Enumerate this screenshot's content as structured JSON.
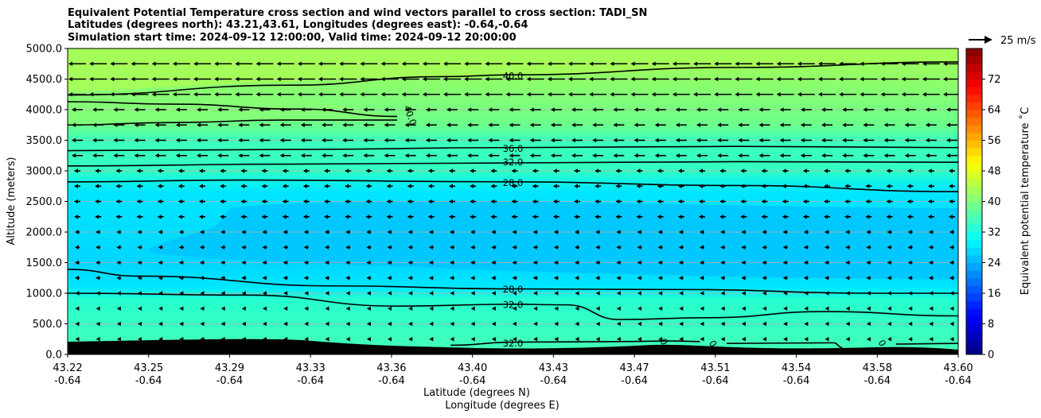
{
  "chart_data": {
    "type": "heatmap",
    "title_lines": [
      "Equivalent Potential Temperature cross section and wind vectors parallel to cross section: TADI_SN",
      "Latitudes (degrees north): 43.21,43.61, Longitudes (degrees east): -0.64,-0.64",
      "Simulation start time: 2024-09-12 12:00:00, Valid time: 2024-09-12 20:00:00"
    ],
    "xlabel_line1": "Latitude (degrees N)",
    "xlabel_line2": "Longitude (degrees E)",
    "ylabel": "Altitude (meters)",
    "x_ticks": [
      {
        "lat": "43.22",
        "lon": "-0.64"
      },
      {
        "lat": "43.25",
        "lon": "-0.64"
      },
      {
        "lat": "43.29",
        "lon": "-0.64"
      },
      {
        "lat": "43.33",
        "lon": "-0.64"
      },
      {
        "lat": "43.36",
        "lon": "-0.64"
      },
      {
        "lat": "43.40",
        "lon": "-0.64"
      },
      {
        "lat": "43.43",
        "lon": "-0.64"
      },
      {
        "lat": "43.47",
        "lon": "-0.64"
      },
      {
        "lat": "43.51",
        "lon": "-0.64"
      },
      {
        "lat": "43.54",
        "lon": "-0.64"
      },
      {
        "lat": "43.58",
        "lon": "-0.64"
      },
      {
        "lat": "43.60",
        "lon": "-0.64"
      }
    ],
    "y_ticks": [
      "0.0",
      "500.0",
      "1000.0",
      "1500.0",
      "2000.0",
      "2500.0",
      "3000.0",
      "3500.0",
      "4000.0",
      "4500.0",
      "5000.0"
    ],
    "ylim": [
      0,
      5000
    ],
    "grid": "horizontal",
    "colorbar": {
      "label": "Equivalent potential temperature ˚C",
      "range": [
        0,
        80
      ],
      "ticks": [
        "0",
        "8",
        "16",
        "24",
        "32",
        "40",
        "48",
        "56",
        "64",
        "72"
      ],
      "colormap": "jet"
    },
    "wind_key_label": "25 m/s",
    "contour_labels": [
      {
        "text": "40.0",
        "x": 0.5,
        "alt": 4560
      },
      {
        "text": "40.0",
        "x": 0.385,
        "alt": 3910,
        "rotate": 70
      },
      {
        "text": "36.0",
        "x": 0.5,
        "alt": 3370
      },
      {
        "text": "32.0",
        "x": 0.5,
        "alt": 3150
      },
      {
        "text": "28.0",
        "x": 0.5,
        "alt": 2810
      },
      {
        "text": "28.0",
        "x": 0.5,
        "alt": 1070
      },
      {
        "text": "32.0",
        "x": 0.5,
        "alt": 820
      },
      {
        "text": "32.0",
        "x": 0.5,
        "alt": 190
      },
      {
        "text": "0",
        "x": 0.67,
        "alt": 210,
        "rotate": 60
      },
      {
        "text": "0",
        "x": 0.725,
        "alt": 180,
        "rotate": 60
      },
      {
        "text": "0",
        "x": 0.915,
        "alt": 190,
        "rotate": 60
      }
    ],
    "contours": [
      {
        "value": 40,
        "points": [
          [
            0,
            4240
          ],
          [
            0.25,
            4400
          ],
          [
            0.42,
            4540
          ],
          [
            0.5,
            4570
          ],
          [
            0.75,
            4690
          ],
          [
            1,
            4780
          ]
        ]
      },
      {
        "value": 40,
        "points": [
          [
            0,
            4130
          ],
          [
            0.12,
            4090
          ],
          [
            0.26,
            4010
          ],
          [
            0.37,
            3890
          ]
        ]
      },
      {
        "value": 40,
        "points": [
          [
            0,
            3750
          ],
          [
            0.12,
            3790
          ],
          [
            0.24,
            3830
          ],
          [
            0.37,
            3830
          ]
        ]
      },
      {
        "value": 36,
        "points": [
          [
            0,
            3330
          ],
          [
            0.25,
            3350
          ],
          [
            0.5,
            3380
          ],
          [
            0.75,
            3400
          ],
          [
            1,
            3380
          ]
        ]
      },
      {
        "value": 32,
        "points": [
          [
            0,
            3080
          ],
          [
            0.25,
            3110
          ],
          [
            0.5,
            3130
          ],
          [
            0.75,
            3150
          ],
          [
            1,
            3140
          ]
        ]
      },
      {
        "value": 28,
        "points": [
          [
            0,
            2820
          ],
          [
            0.2,
            2850
          ],
          [
            0.5,
            2820
          ],
          [
            0.75,
            2760
          ],
          [
            1,
            2660
          ]
        ]
      },
      {
        "value": 28,
        "points": [
          [
            0,
            1390
          ],
          [
            0.08,
            1280
          ],
          [
            0.3,
            1120
          ],
          [
            0.5,
            1070
          ],
          [
            0.7,
            1060
          ],
          [
            0.9,
            1000
          ],
          [
            1,
            1000
          ]
        ]
      },
      {
        "value": 32,
        "points": [
          [
            0,
            1000
          ],
          [
            0.2,
            970
          ],
          [
            0.37,
            790
          ],
          [
            0.5,
            820
          ],
          [
            0.56,
            810
          ],
          [
            0.62,
            570
          ],
          [
            0.72,
            600
          ],
          [
            0.85,
            700
          ],
          [
            1,
            630
          ]
        ]
      },
      {
        "value": 32,
        "points": [
          [
            0.43,
            150
          ],
          [
            0.5,
            200
          ],
          [
            0.62,
            210
          ],
          [
            0.68,
            220
          ],
          [
            0.71,
            210
          ]
        ]
      },
      {
        "value": 32,
        "points": [
          [
            0.74,
            180
          ],
          [
            0.86,
            190
          ],
          [
            0.87,
            110
          ]
        ]
      },
      {
        "value": 32,
        "points": [
          [
            0.93,
            170
          ],
          [
            1,
            180
          ]
        ]
      }
    ],
    "fill_bands": [
      {
        "band": "36-40",
        "color": "#80ff80"
      },
      {
        "band": "32-36",
        "color": "#2effc9"
      },
      {
        "band": "28-32",
        "color": "#00f0ff"
      },
      {
        "band": "24-28",
        "color": "#00c8ff"
      },
      {
        "band": "40-44",
        "color": "#a6ff59"
      }
    ],
    "wind_direction": "left",
    "terrain_color": "#000000"
  }
}
